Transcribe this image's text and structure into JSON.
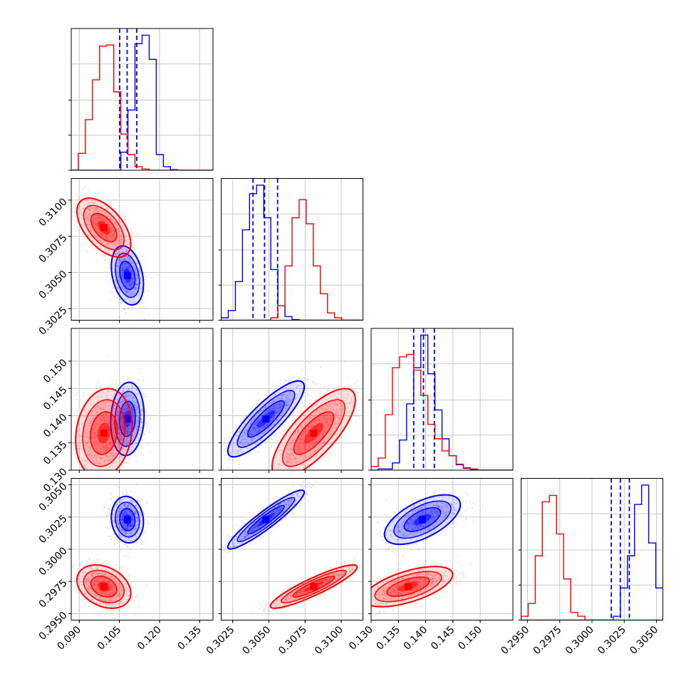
{
  "chart_data": {
    "type": "corner",
    "title": "",
    "colors": {
      "blue": "#0000ff",
      "red": "#ff0000",
      "grid": "#c8c8c8"
    },
    "grid": true,
    "parameters": [
      {
        "range": [
          0.087,
          0.14
        ],
        "ticks": [
          0.09,
          0.105,
          0.12,
          0.135
        ],
        "tick_labels": [
          "0.090",
          "0.105",
          "0.120",
          "0.135"
        ]
      },
      {
        "range": [
          0.3017,
          0.3115
        ],
        "ticks": [
          0.3025,
          0.305,
          0.3075,
          0.31
        ],
        "tick_labels": [
          "0.3025",
          "0.3050",
          "0.3075",
          "0.3100"
        ]
      },
      {
        "range": [
          0.13,
          0.156
        ],
        "ticks": [
          0.13,
          0.135,
          0.14,
          0.145,
          0.15
        ],
        "tick_labels": [
          "0.130",
          "0.135",
          "0.140",
          "0.145",
          "0.150"
        ]
      },
      {
        "range": [
          0.2945,
          0.3055
        ],
        "ticks": [
          0.295,
          0.2975,
          0.3,
          0.3025,
          0.305
        ],
        "tick_labels": [
          "0.2950",
          "0.2975",
          "0.3000",
          "0.3025",
          "0.3050"
        ]
      }
    ],
    "series": [
      {
        "color": "blue",
        "means": [
          0.108,
          0.3048,
          0.1394,
          0.3023
        ],
        "quantiles": [
          [
            0.1051,
            0.1079,
            0.1115
          ],
          [
            0.3039,
            0.3047,
            0.3056
          ],
          [
            0.1378,
            0.1396,
            0.1416
          ],
          [
            0.3015,
            0.3022,
            0.3029
          ]
        ],
        "histograms": [
          [
            0,
            0,
            0,
            0,
            0,
            0,
            0,
            1.5,
            5.0,
            10.5,
            11.2,
            9.2,
            1.3,
            0.3,
            0.05,
            0,
            0,
            0,
            0,
            0
          ],
          [
            0.2,
            0.8,
            3.2,
            7.5,
            10.5,
            11.2,
            8.5,
            4.2,
            1.2,
            0.3,
            0.05,
            0,
            0,
            0,
            0,
            0,
            0,
            0,
            0,
            0
          ],
          [
            0,
            0.1,
            0.1,
            0.6,
            2.5,
            5.5,
            8.5,
            11.2,
            8.0,
            5.0,
            2.6,
            1.2,
            0.45,
            0.15,
            0.05,
            0,
            0,
            0,
            0,
            0
          ],
          [
            0,
            0,
            0,
            0,
            0,
            0,
            0,
            0,
            0,
            0,
            0,
            0,
            0,
            0.3,
            2.5,
            5.0,
            9.0,
            10.5,
            6.0,
            2.5
          ]
        ]
      },
      {
        "color": "red",
        "means": [
          0.0992,
          0.3081,
          0.1368,
          0.2971
        ],
        "histograms": [
          [
            0,
            1.4,
            4.2,
            7.5,
            10.3,
            10.4,
            6.5,
            3.0,
            1.3,
            0.3,
            0.1,
            0,
            0,
            0,
            0,
            0,
            0,
            0,
            0,
            0
          ],
          [
            0,
            0,
            0,
            0,
            0,
            0,
            0,
            0.2,
            1.2,
            4.5,
            8.5,
            10.0,
            8.0,
            4.5,
            2.2,
            0.6,
            0.2,
            0,
            0,
            0
          ],
          [
            0.3,
            1.0,
            4.6,
            8.5,
            9.4,
            9.6,
            8.3,
            6.2,
            3.8,
            2.6,
            1.6,
            1.2,
            0.5,
            0.2,
            0.1,
            0,
            0,
            0,
            0,
            0
          ],
          [
            0.3,
            1.3,
            5.0,
            9.2,
            9.7,
            6.7,
            3.2,
            0.6,
            0.3,
            0,
            0,
            0,
            0,
            0,
            0,
            0,
            0,
            0,
            0,
            0
          ]
        ]
      }
    ],
    "pairs": [
      {
        "row": 1,
        "col": 0,
        "blue": {
          "sx": 0.0025,
          "sy": 0.00085,
          "r": -0.3
        },
        "red": {
          "sx": 0.0042,
          "sy": 0.00085,
          "r": -0.55
        }
      },
      {
        "row": 2,
        "col": 0,
        "blue": {
          "sx": 0.0026,
          "sy": 0.0028,
          "r": 0.1
        },
        "red": {
          "sx": 0.0044,
          "sy": 0.0034,
          "r": 0.15
        }
      },
      {
        "row": 2,
        "col": 1,
        "blue": {
          "sx": 0.0011,
          "sy": 0.0029,
          "r": 0.85
        },
        "red": {
          "sx": 0.0012,
          "sy": 0.0034,
          "r": 0.75
        }
      },
      {
        "row": 3,
        "col": 0,
        "blue": {
          "sx": 0.0025,
          "sy": 0.00075,
          "r": -0.1
        },
        "red": {
          "sx": 0.0042,
          "sy": 0.0007,
          "r": -0.3
        }
      },
      {
        "row": 3,
        "col": 1,
        "blue": {
          "sx": 0.0011,
          "sy": 0.00095,
          "r": 0.93
        },
        "red": {
          "sx": 0.00125,
          "sy": 0.0007,
          "r": 0.9
        }
      },
      {
        "row": 3,
        "col": 2,
        "blue": {
          "sx": 0.0029,
          "sy": 0.0008,
          "r": 0.6
        },
        "red": {
          "sx": 0.0034,
          "sy": 0.00065,
          "r": 0.6
        }
      }
    ]
  }
}
